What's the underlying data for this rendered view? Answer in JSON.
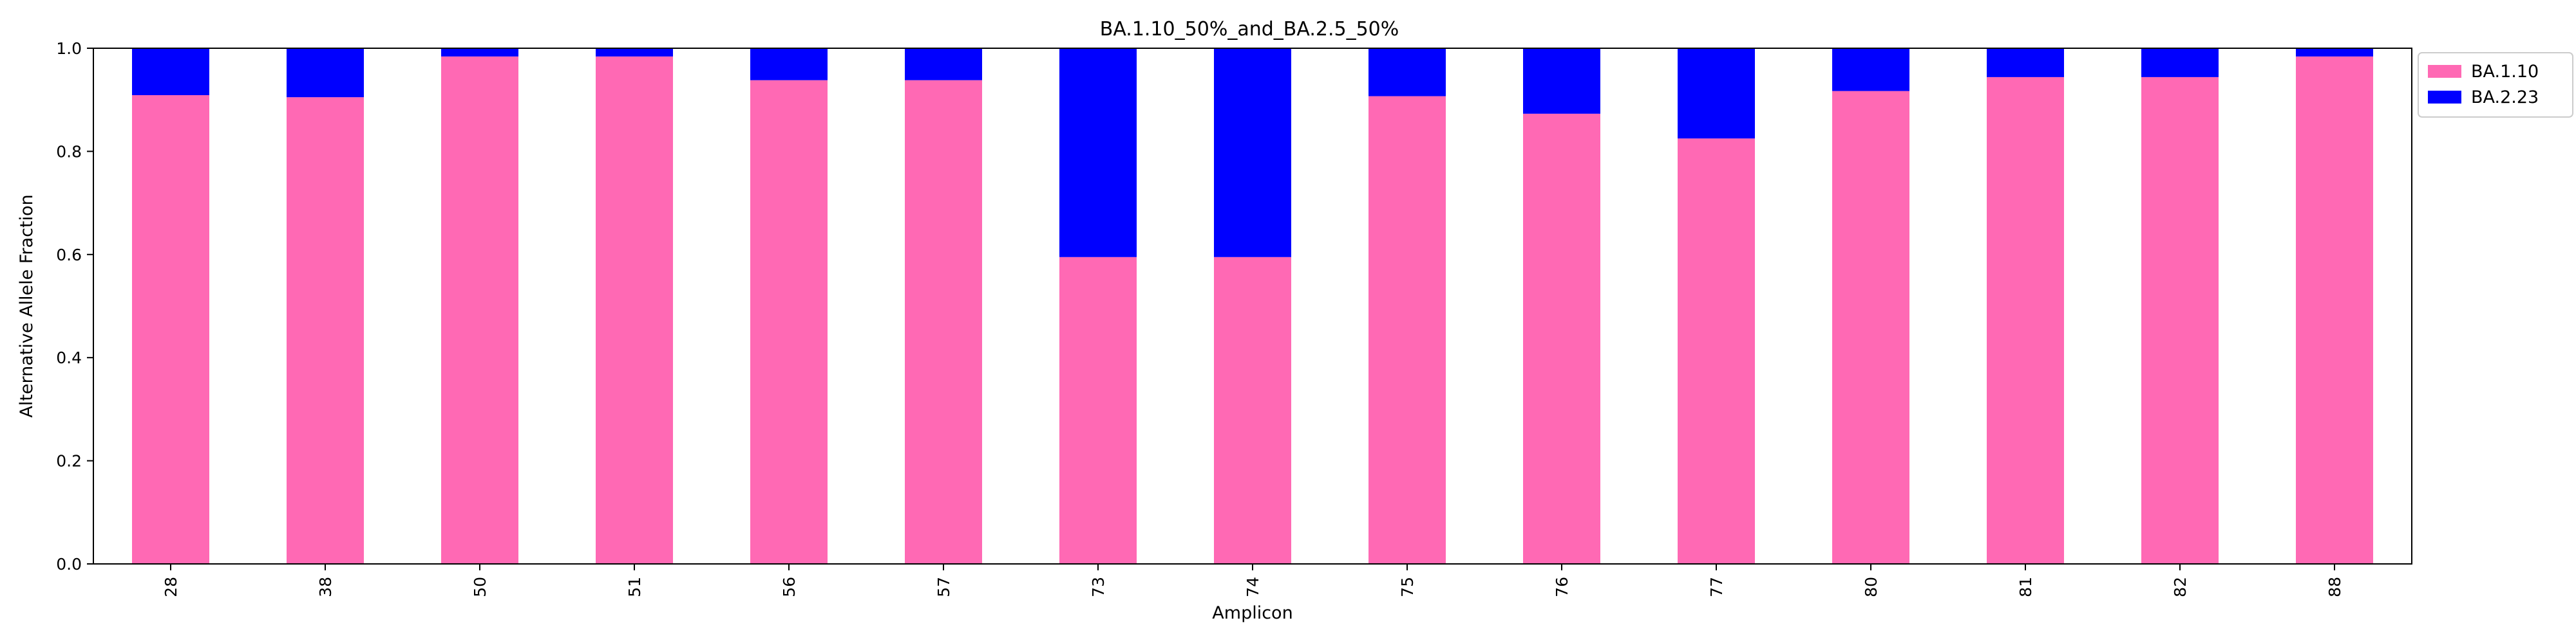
{
  "chart_data": {
    "type": "bar",
    "stacked": true,
    "title": "BA.1.10_50%_and_BA.2.5_50%",
    "xlabel": "Amplicon",
    "ylabel": "Alternative Allele Fraction",
    "ylim": [
      0,
      1.0
    ],
    "yticks": [
      "0.0",
      "0.2",
      "0.4",
      "0.6",
      "0.8",
      "1.0"
    ],
    "categories": [
      "28",
      "38",
      "50",
      "51",
      "56",
      "57",
      "73",
      "74",
      "75",
      "76",
      "77",
      "80",
      "81",
      "82",
      "88"
    ],
    "series": [
      {
        "name": "BA.1.10",
        "color": "#ff69b4",
        "values": [
          0.909,
          0.905,
          0.984,
          0.984,
          0.938,
          0.938,
          0.595,
          0.595,
          0.907,
          0.873,
          0.825,
          0.917,
          0.944,
          0.944,
          0.984
        ]
      },
      {
        "name": "BA.2.23",
        "color": "#0000ff",
        "values": [
          0.091,
          0.095,
          0.016,
          0.016,
          0.062,
          0.062,
          0.405,
          0.405,
          0.093,
          0.127,
          0.175,
          0.083,
          0.056,
          0.056,
          0.016
        ]
      }
    ],
    "grid": false,
    "legend_position": "upper-right-outside"
  }
}
